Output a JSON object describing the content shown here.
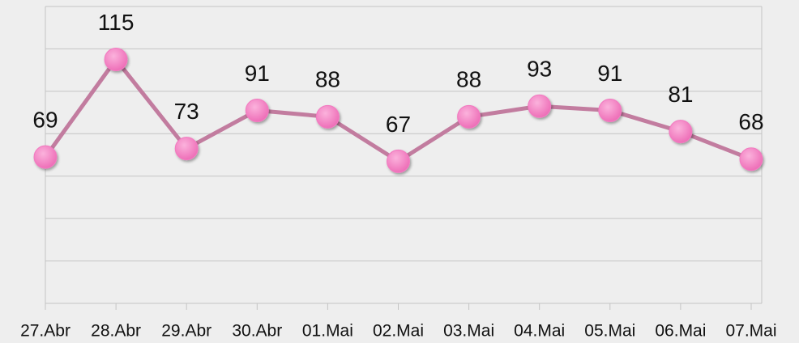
{
  "chart_data": {
    "type": "line",
    "categories": [
      "27.Abr",
      "28.Abr",
      "29.Abr",
      "30.Abr",
      "01.Mai",
      "02.Mai",
      "03.Mai",
      "04.Mai",
      "05.Mai",
      "06.Mai",
      "07.Mai"
    ],
    "series": [
      {
        "color": "#c27c9f",
        "marker_color": "#f27ac0",
        "values": [
          69,
          115,
          73,
          91,
          88,
          67,
          88,
          93,
          91,
          81,
          68
        ]
      }
    ],
    "ylim": [
      0,
      140
    ],
    "yticks": [
      0,
      20,
      40,
      60,
      80,
      100,
      120,
      140
    ],
    "grid": true
  }
}
